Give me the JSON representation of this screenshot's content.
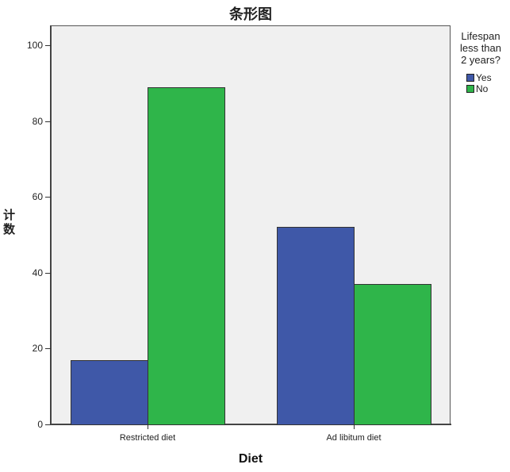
{
  "chart_data": {
    "type": "bar",
    "title": "条形图",
    "xlabel": "Diet",
    "ylabel": "计数",
    "categories": [
      "Restricted diet",
      "Ad libitum diet"
    ],
    "series": [
      {
        "name": "Yes",
        "color": "#3f58a8",
        "values": [
          17,
          52
        ]
      },
      {
        "name": "No",
        "color": "#2fb54a",
        "values": [
          89,
          37
        ]
      }
    ],
    "legend": {
      "title": "Lifespan less than 2 years?",
      "title_lines": [
        "Lifespan",
        "less than",
        "2 years?"
      ],
      "position": "right"
    },
    "ylim": [
      0,
      105
    ],
    "yticks": [
      0,
      20,
      40,
      60,
      80,
      100
    ],
    "grid": false,
    "plot_background": "#f0f0f0"
  }
}
